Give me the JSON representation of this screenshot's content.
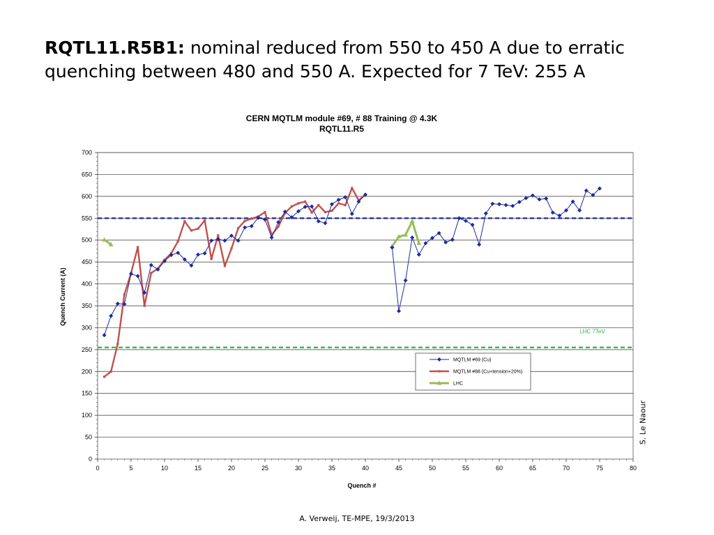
{
  "slide": {
    "title_bold": "RQTL11.R5B1:",
    "title_rest": " nominal reduced from 550 to 450 A due to erratic quenching between 480 and 550 A. Expected for 7 TeV: 255 A",
    "author": "S. Le Naour",
    "footer": "A. Verweij, TE-MPE, 19/3/2013"
  },
  "chart_data": {
    "type": "line",
    "title": "CERN MQTLM module #69, # 88 Training @ 4.3K",
    "subtitle": "RQTL11.R5",
    "xlabel": "Quench #",
    "ylabel": "Quench Current (A)",
    "xlim": [
      0,
      80
    ],
    "ylim": [
      0,
      700
    ],
    "xticks": [
      0,
      5,
      10,
      15,
      20,
      25,
      30,
      35,
      40,
      45,
      50,
      55,
      60,
      65,
      70,
      75,
      80
    ],
    "yticks": [
      0,
      50,
      100,
      150,
      200,
      250,
      300,
      350,
      400,
      450,
      500,
      550,
      600,
      650,
      700
    ],
    "grid": "horizontal",
    "legend_position": "bottom-right",
    "reference_lines": [
      {
        "name": "nominal",
        "y": 550,
        "color": "#1f2a9e",
        "style": "dashed"
      },
      {
        "name": "LHC 7TeV",
        "y": 255,
        "color": "#2db34a",
        "style": "dashed",
        "label": "LHC 7TeV"
      }
    ],
    "series": [
      {
        "name": "MQTLM #69 (Cu)",
        "color": "#1f2a9e",
        "marker": "diamond",
        "points": [
          [
            1,
            283
          ],
          [
            2,
            327
          ],
          [
            3,
            355
          ],
          [
            4,
            354
          ],
          [
            5,
            423
          ],
          [
            6,
            418
          ],
          [
            7,
            380
          ],
          [
            8,
            443
          ],
          [
            9,
            433
          ],
          [
            10,
            452
          ],
          [
            11,
            466
          ],
          [
            12,
            471
          ],
          [
            13,
            456
          ],
          [
            14,
            442
          ],
          [
            15,
            467
          ],
          [
            16,
            470
          ],
          [
            17,
            499
          ],
          [
            18,
            502
          ],
          [
            19,
            499
          ],
          [
            20,
            510
          ],
          [
            21,
            499
          ],
          [
            22,
            529
          ],
          [
            23,
            532
          ],
          [
            24,
            551
          ],
          [
            25,
            547
          ],
          [
            26,
            506
          ],
          [
            27,
            541
          ],
          [
            28,
            565
          ],
          [
            29,
            552
          ],
          [
            30,
            566
          ],
          [
            31,
            576
          ],
          [
            32,
            577
          ],
          [
            33,
            543
          ],
          [
            34,
            539
          ],
          [
            35,
            582
          ],
          [
            36,
            592
          ],
          [
            37,
            598
          ],
          [
            38,
            560
          ],
          [
            39,
            588
          ],
          [
            40,
            604
          ],
          null,
          [
            44,
            483
          ],
          [
            45,
            338
          ],
          [
            46,
            408
          ],
          [
            47,
            506
          ],
          [
            48,
            467
          ],
          [
            49,
            493
          ],
          [
            50,
            505
          ],
          [
            51,
            516
          ],
          [
            52,
            495
          ],
          [
            53,
            501
          ],
          [
            54,
            550
          ],
          [
            55,
            544
          ],
          [
            56,
            535
          ],
          [
            57,
            490
          ],
          [
            58,
            561
          ],
          [
            59,
            583
          ],
          [
            60,
            582
          ],
          [
            61,
            580
          ],
          [
            62,
            578
          ],
          [
            63,
            587
          ],
          [
            64,
            596
          ],
          [
            65,
            602
          ],
          [
            66,
            593
          ],
          [
            67,
            595
          ],
          [
            68,
            563
          ],
          [
            69,
            556
          ],
          [
            70,
            568
          ],
          [
            71,
            588
          ],
          [
            72,
            568
          ],
          [
            73,
            613
          ],
          [
            74,
            603
          ],
          [
            75,
            618
          ]
        ]
      },
      {
        "name": "MQTLM #88 (Cu+tension+20%)",
        "color": "#c0504d",
        "marker": "square",
        "points": [
          [
            1,
            188
          ],
          [
            2,
            200
          ],
          [
            3,
            263
          ],
          [
            4,
            376
          ],
          [
            5,
            425
          ],
          [
            6,
            484
          ],
          [
            7,
            350
          ],
          [
            8,
            425
          ],
          [
            9,
            435
          ],
          [
            10,
            455
          ],
          [
            11,
            470
          ],
          [
            12,
            497
          ],
          [
            13,
            543
          ],
          [
            14,
            522
          ],
          [
            15,
            526
          ],
          [
            16,
            545
          ],
          [
            17,
            457
          ],
          [
            18,
            511
          ],
          [
            19,
            441
          ],
          [
            20,
            481
          ],
          [
            21,
            527
          ],
          [
            22,
            544
          ],
          [
            23,
            549
          ],
          [
            24,
            554
          ],
          [
            25,
            564
          ],
          [
            26,
            512
          ],
          [
            27,
            531
          ],
          [
            28,
            562
          ],
          [
            29,
            577
          ],
          [
            30,
            584
          ],
          [
            31,
            588
          ],
          [
            32,
            563
          ],
          [
            33,
            580
          ],
          [
            34,
            564
          ],
          [
            35,
            567
          ],
          [
            36,
            584
          ],
          [
            37,
            580
          ],
          [
            38,
            619
          ],
          [
            39,
            591
          ],
          [
            40,
            604
          ]
        ]
      },
      {
        "name": "LHC",
        "color": "#9bbb59",
        "marker": "triangle",
        "points": [
          [
            1,
            501
          ],
          [
            2,
            490
          ],
          null,
          [
            44,
            486
          ],
          [
            45,
            508
          ],
          [
            46,
            512
          ],
          [
            47,
            543
          ],
          [
            48,
            493
          ]
        ]
      }
    ]
  }
}
